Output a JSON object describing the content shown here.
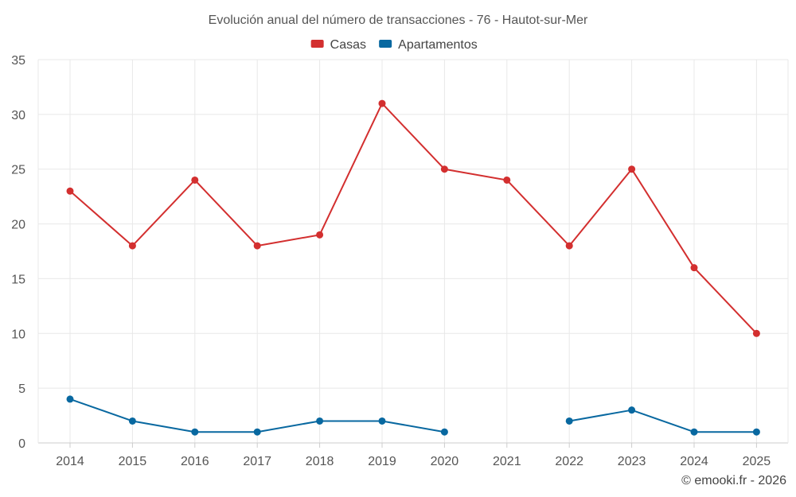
{
  "chart_data": {
    "type": "line",
    "title": "Evolución anual del número de transacciones - 76 - Hautot-sur-Mer",
    "categories": [
      "2014",
      "2015",
      "2016",
      "2017",
      "2018",
      "2019",
      "2020",
      "2021",
      "2022",
      "2023",
      "2024",
      "2025"
    ],
    "series": [
      {
        "name": "Casas",
        "color": "#d32f2f",
        "values": [
          23,
          18,
          24,
          18,
          19,
          31,
          25,
          24,
          18,
          25,
          16,
          10
        ]
      },
      {
        "name": "Apartamentos",
        "color": "#0868a0",
        "values": [
          4,
          2,
          1,
          1,
          2,
          2,
          1,
          null,
          2,
          3,
          1,
          1
        ]
      }
    ],
    "ylim": [
      0,
      35
    ],
    "yticks": [
      0,
      5,
      10,
      15,
      20,
      25,
      30,
      35
    ],
    "grid": true,
    "legend": "top-center"
  },
  "credit": "© emooki.fr - 2026"
}
